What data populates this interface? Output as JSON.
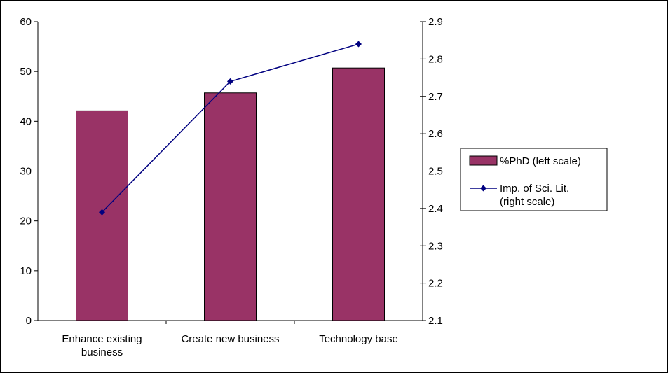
{
  "chart_data": {
    "type": "bar",
    "categories": [
      "Enhance existing business",
      "Create new business",
      "Technology base"
    ],
    "category_lines": [
      [
        "Enhance existing",
        "business"
      ],
      [
        "Create new business"
      ],
      [
        "Technology base"
      ]
    ],
    "series": [
      {
        "name": "%PhD (left scale)",
        "type": "bar",
        "axis": "left",
        "color": "#993366",
        "values": [
          42.1,
          45.7,
          50.7
        ]
      },
      {
        "name_lines": [
          "Imp. of Sci. Lit.",
          "(right scale)"
        ],
        "type": "line",
        "axis": "right",
        "color": "#000080",
        "values": [
          2.39,
          2.74,
          2.84
        ]
      }
    ],
    "y_left": {
      "min": 0,
      "max": 60,
      "ticks": [
        "0",
        "10",
        "20",
        "30",
        "40",
        "50",
        "60"
      ]
    },
    "y_right": {
      "min": 2.1,
      "max": 2.9,
      "ticks": [
        "2.1",
        "2.2",
        "2.3",
        "2.4",
        "2.5",
        "2.6",
        "2.7",
        "2.8",
        "2.9"
      ]
    },
    "legend": {
      "position": "right"
    },
    "grid": false
  }
}
